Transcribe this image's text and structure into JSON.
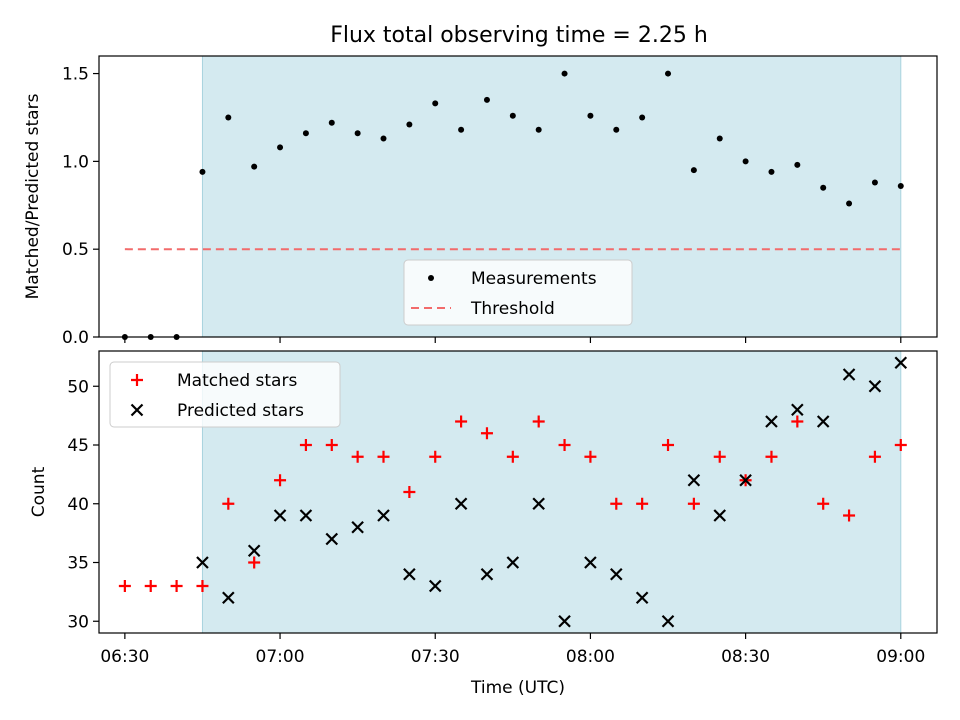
{
  "title": "Flux total observing time = 2.25 h",
  "chart_data": [
    {
      "type": "scatter",
      "panel": "top",
      "ylabel": "Matched/Predicted stars",
      "ylim": [
        0,
        1.6
      ],
      "yticks": [
        0.0,
        0.5,
        1.0,
        1.5
      ],
      "ytick_labels": [
        "0.0",
        "0.5",
        "1.0",
        "1.5"
      ],
      "shaded_x_range": [
        "06:45",
        "09:00"
      ],
      "grid": false,
      "legend": {
        "position": "bottom-center",
        "entries": [
          {
            "label": "Measurements",
            "marker": "dot",
            "color": "#000000"
          },
          {
            "label": "Threshold",
            "marker": "dashed-line",
            "color": "#f26b6b"
          }
        ]
      },
      "series": [
        {
          "name": "Measurements",
          "marker": "dot",
          "color": "#000000",
          "x": [
            "06:30",
            "06:35",
            "06:40",
            "06:45",
            "06:50",
            "06:55",
            "07:00",
            "07:05",
            "07:10",
            "07:15",
            "07:20",
            "07:25",
            "07:30",
            "07:35",
            "07:40",
            "07:45",
            "07:50",
            "07:55",
            "08:00",
            "08:05",
            "08:10",
            "08:15",
            "08:20",
            "08:25",
            "08:30",
            "08:35",
            "08:40",
            "08:45",
            "08:50",
            "08:55",
            "09:00"
          ],
          "y": [
            0.0,
            0.0,
            0.0,
            0.94,
            1.25,
            0.97,
            1.08,
            1.16,
            1.22,
            1.16,
            1.13,
            1.21,
            1.33,
            1.18,
            1.35,
            1.26,
            1.18,
            1.5,
            1.26,
            1.18,
            1.25,
            1.5,
            0.95,
            1.13,
            1.0,
            0.94,
            0.98,
            0.85,
            0.76,
            0.88,
            0.86
          ]
        },
        {
          "name": "Threshold",
          "marker": "dashed-line",
          "color": "#f26b6b",
          "x": [
            "06:30",
            "09:00"
          ],
          "y": [
            0.5,
            0.5
          ]
        }
      ]
    },
    {
      "type": "scatter",
      "panel": "bottom",
      "xlabel": "Time (UTC)",
      "ylabel": "Count",
      "xlim": [
        "06:25",
        "09:07"
      ],
      "ylim": [
        29,
        53
      ],
      "xticks": [
        "06:30",
        "07:00",
        "07:30",
        "08:00",
        "08:30",
        "09:00"
      ],
      "yticks": [
        30,
        35,
        40,
        45,
        50
      ],
      "ytick_labels": [
        "30",
        "35",
        "40",
        "45",
        "50"
      ],
      "shaded_x_range": [
        "06:45",
        "09:00"
      ],
      "grid": false,
      "legend": {
        "position": "top-left",
        "entries": [
          {
            "label": "Matched stars",
            "marker": "plus",
            "color": "#ff0000"
          },
          {
            "label": "Predicted stars",
            "marker": "x",
            "color": "#000000"
          }
        ]
      },
      "x": [
        "06:30",
        "06:35",
        "06:40",
        "06:45",
        "06:50",
        "06:55",
        "07:00",
        "07:05",
        "07:10",
        "07:15",
        "07:20",
        "07:25",
        "07:30",
        "07:35",
        "07:40",
        "07:45",
        "07:50",
        "07:55",
        "08:00",
        "08:05",
        "08:10",
        "08:15",
        "08:20",
        "08:25",
        "08:30",
        "08:35",
        "08:40",
        "08:45",
        "08:50",
        "08:55",
        "09:00"
      ],
      "series": [
        {
          "name": "Matched stars",
          "marker": "plus",
          "color": "#ff0000",
          "x": [
            "06:30",
            "06:35",
            "06:40",
            "06:45",
            "06:50",
            "06:55",
            "07:00",
            "07:05",
            "07:10",
            "07:15",
            "07:20",
            "07:25",
            "07:30",
            "07:35",
            "07:40",
            "07:45",
            "07:50",
            "07:55",
            "08:00",
            "08:05",
            "08:10",
            "08:15",
            "08:20",
            "08:25",
            "08:30",
            "08:35",
            "08:40",
            "08:45",
            "08:50",
            "08:55",
            "09:00"
          ],
          "y": [
            33,
            33,
            33,
            33,
            40,
            35,
            42,
            45,
            45,
            44,
            44,
            41,
            44,
            47,
            46,
            44,
            47,
            45,
            44,
            40,
            40,
            45,
            40,
            44,
            42,
            44,
            47,
            40,
            39,
            44,
            45
          ]
        },
        {
          "name": "Predicted stars",
          "marker": "x",
          "color": "#000000",
          "x": [
            "06:45",
            "06:50",
            "06:55",
            "07:00",
            "07:05",
            "07:10",
            "07:15",
            "07:20",
            "07:25",
            "07:30",
            "07:35",
            "07:40",
            "07:45",
            "07:50",
            "07:55",
            "08:00",
            "08:05",
            "08:10",
            "08:15",
            "08:20",
            "08:25",
            "08:30",
            "08:35",
            "08:40",
            "08:45",
            "08:50",
            "08:55",
            "09:00"
          ],
          "y": [
            35,
            32,
            36,
            39,
            39,
            37,
            38,
            39,
            34,
            33,
            40,
            34,
            35,
            40,
            30,
            35,
            34,
            32,
            30,
            42,
            39,
            42,
            47,
            48,
            47,
            51,
            50,
            52
          ]
        }
      ]
    }
  ],
  "colors": {
    "shade": "#d4eaf0",
    "shade_edge": "#a9d4de"
  }
}
